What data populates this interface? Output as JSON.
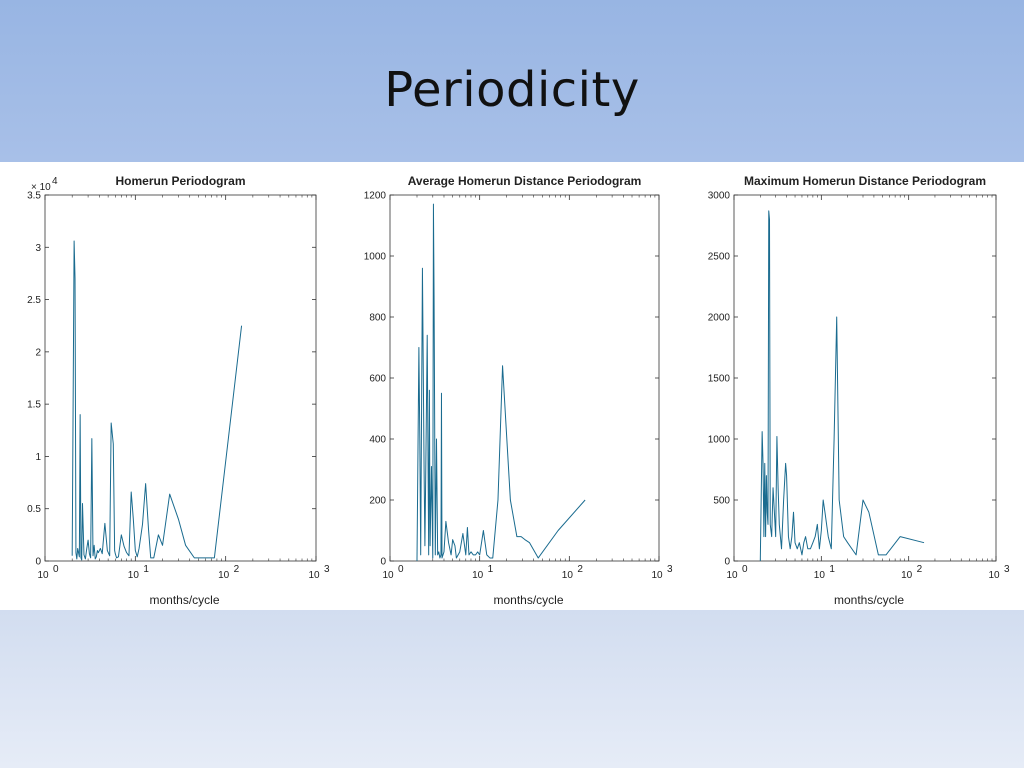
{
  "slide": {
    "title": "Periodicity"
  },
  "colors": {
    "line": "#1a6b8f",
    "axis": "#333333"
  },
  "chart_data": [
    {
      "type": "line",
      "title": "Homerun Periodogram",
      "xlabel": "months/cycle",
      "ylabel": "",
      "xscale": "log",
      "xlim": [
        1,
        1000
      ],
      "ylim": [
        0,
        35000
      ],
      "x_ticks": [
        "10",
        "10",
        "10",
        "10"
      ],
      "x_tick_exps": [
        "0",
        "1",
        "2",
        "3"
      ],
      "y_ticks": [
        "0",
        "0.5",
        "1",
        "1.5",
        "2",
        "2.5",
        "3",
        "3.5"
      ],
      "y_exponent": "× 10",
      "y_exponent_power": "4",
      "series": [
        {
          "x": [
            2.0,
            2.1,
            2.15,
            2.2,
            2.25,
            2.3,
            2.4,
            2.45,
            2.5,
            2.55,
            2.6,
            2.7,
            2.8,
            2.9,
            3.0,
            3.1,
            3.2,
            3.3,
            3.4,
            3.5,
            3.6,
            3.7,
            3.8,
            3.9,
            4.1,
            4.3,
            4.6,
            4.9,
            5.2,
            5.4,
            5.7,
            5.9,
            6.0,
            6.2,
            6.5,
            7.0,
            7.5,
            8.0,
            8.5,
            9.0,
            9.5,
            10.0,
            10.5,
            11.0,
            12.0,
            13.0,
            14.0,
            14.8,
            16.0,
            18.0,
            20.0,
            24.0,
            30.0,
            36.0,
            45.0,
            55.0,
            75.0,
            150.0
          ],
          "y": [
            500,
            30600,
            27000,
            800,
            200,
            1200,
            400,
            14000,
            300,
            100,
            5500,
            600,
            200,
            1200,
            2000,
            700,
            300,
            11700,
            500,
            1500,
            200,
            400,
            1000,
            800,
            1200,
            700,
            3600,
            1000,
            500,
            13200,
            11200,
            1000,
            700,
            300,
            400,
            2500,
            1400,
            800,
            500,
            6600,
            4000,
            1000,
            400,
            1200,
            3500,
            7400,
            3000,
            300,
            300,
            2500,
            1500,
            6400,
            4000,
            1500,
            300,
            300,
            300,
            22500
          ]
        }
      ]
    },
    {
      "type": "line",
      "title": "Average Homerun Distance Periodogram",
      "xlabel": "months/cycle",
      "ylabel": "",
      "xscale": "log",
      "xlim": [
        1,
        1000
      ],
      "ylim": [
        0,
        1200
      ],
      "x_ticks": [
        "10",
        "10",
        "10",
        "10"
      ],
      "x_tick_exps": [
        "0",
        "1",
        "2",
        "3"
      ],
      "y_ticks": [
        "0",
        "200",
        "400",
        "600",
        "800",
        "1000",
        "1200"
      ],
      "series": [
        {
          "x": [
            2.0,
            2.1,
            2.15,
            2.2,
            2.3,
            2.4,
            2.45,
            2.5,
            2.6,
            2.7,
            2.75,
            2.8,
            2.9,
            3.0,
            3.05,
            3.1,
            3.2,
            3.3,
            3.4,
            3.5,
            3.6,
            3.7,
            3.75,
            3.8,
            4.0,
            4.2,
            4.5,
            4.8,
            5.0,
            5.3,
            5.5,
            6.0,
            6.5,
            7.0,
            7.3,
            7.6,
            8.0,
            8.5,
            9.0,
            9.5,
            10.0,
            11.0,
            12.0,
            13.0,
            14.0,
            16.0,
            18.0,
            22.0,
            26.0,
            29.0,
            32.0,
            36.0,
            45.0,
            75.0,
            150.0
          ],
          "y": [
            0,
            700,
            400,
            20,
            960,
            300,
            50,
            270,
            740,
            20,
            560,
            50,
            310,
            10,
            1170,
            870,
            20,
            400,
            20,
            30,
            10,
            20,
            550,
            10,
            30,
            130,
            60,
            20,
            70,
            50,
            10,
            30,
            90,
            20,
            110,
            20,
            30,
            20,
            20,
            30,
            20,
            100,
            20,
            10,
            10,
            200,
            640,
            200,
            80,
            80,
            70,
            60,
            10,
            100,
            200
          ]
        }
      ]
    },
    {
      "type": "line",
      "title": "Maximum Homerun Distance Periodogram",
      "xlabel": "months/cycle",
      "ylabel": "",
      "xscale": "log",
      "xlim": [
        1,
        1000
      ],
      "ylim": [
        0,
        3000
      ],
      "x_ticks": [
        "10",
        "10",
        "10",
        "10"
      ],
      "x_tick_exps": [
        "0",
        "1",
        "2",
        "3"
      ],
      "y_ticks": [
        "0",
        "500",
        "1000",
        "1500",
        "2000",
        "2500",
        "3000"
      ],
      "series": [
        {
          "x": [
            2.0,
            2.1,
            2.15,
            2.2,
            2.25,
            2.3,
            2.35,
            2.4,
            2.45,
            2.5,
            2.55,
            2.6,
            2.7,
            2.8,
            2.9,
            3.0,
            3.1,
            3.2,
            3.3,
            3.5,
            3.7,
            3.9,
            4.0,
            4.2,
            4.4,
            4.6,
            4.8,
            5.0,
            5.3,
            5.6,
            6.0,
            6.3,
            6.6,
            7.0,
            7.5,
            8.0,
            8.5,
            9.0,
            9.5,
            10.0,
            10.5,
            11.0,
            12.0,
            13.0,
            14.0,
            15.0,
            16.0,
            18.0,
            20.0,
            25.0,
            30.0,
            35.0,
            45.0,
            55.0,
            80.0,
            150.0
          ],
          "y": [
            0,
            1060,
            800,
            200,
            800,
            200,
            700,
            400,
            300,
            2870,
            2800,
            300,
            200,
            600,
            400,
            200,
            1020,
            600,
            300,
            100,
            500,
            800,
            700,
            200,
            100,
            200,
            400,
            150,
            100,
            150,
            50,
            150,
            200,
            100,
            100,
            150,
            200,
            300,
            100,
            250,
            500,
            400,
            200,
            100,
            1000,
            2000,
            500,
            200,
            150,
            50,
            500,
            400,
            50,
            50,
            200,
            150
          ]
        }
      ]
    }
  ]
}
